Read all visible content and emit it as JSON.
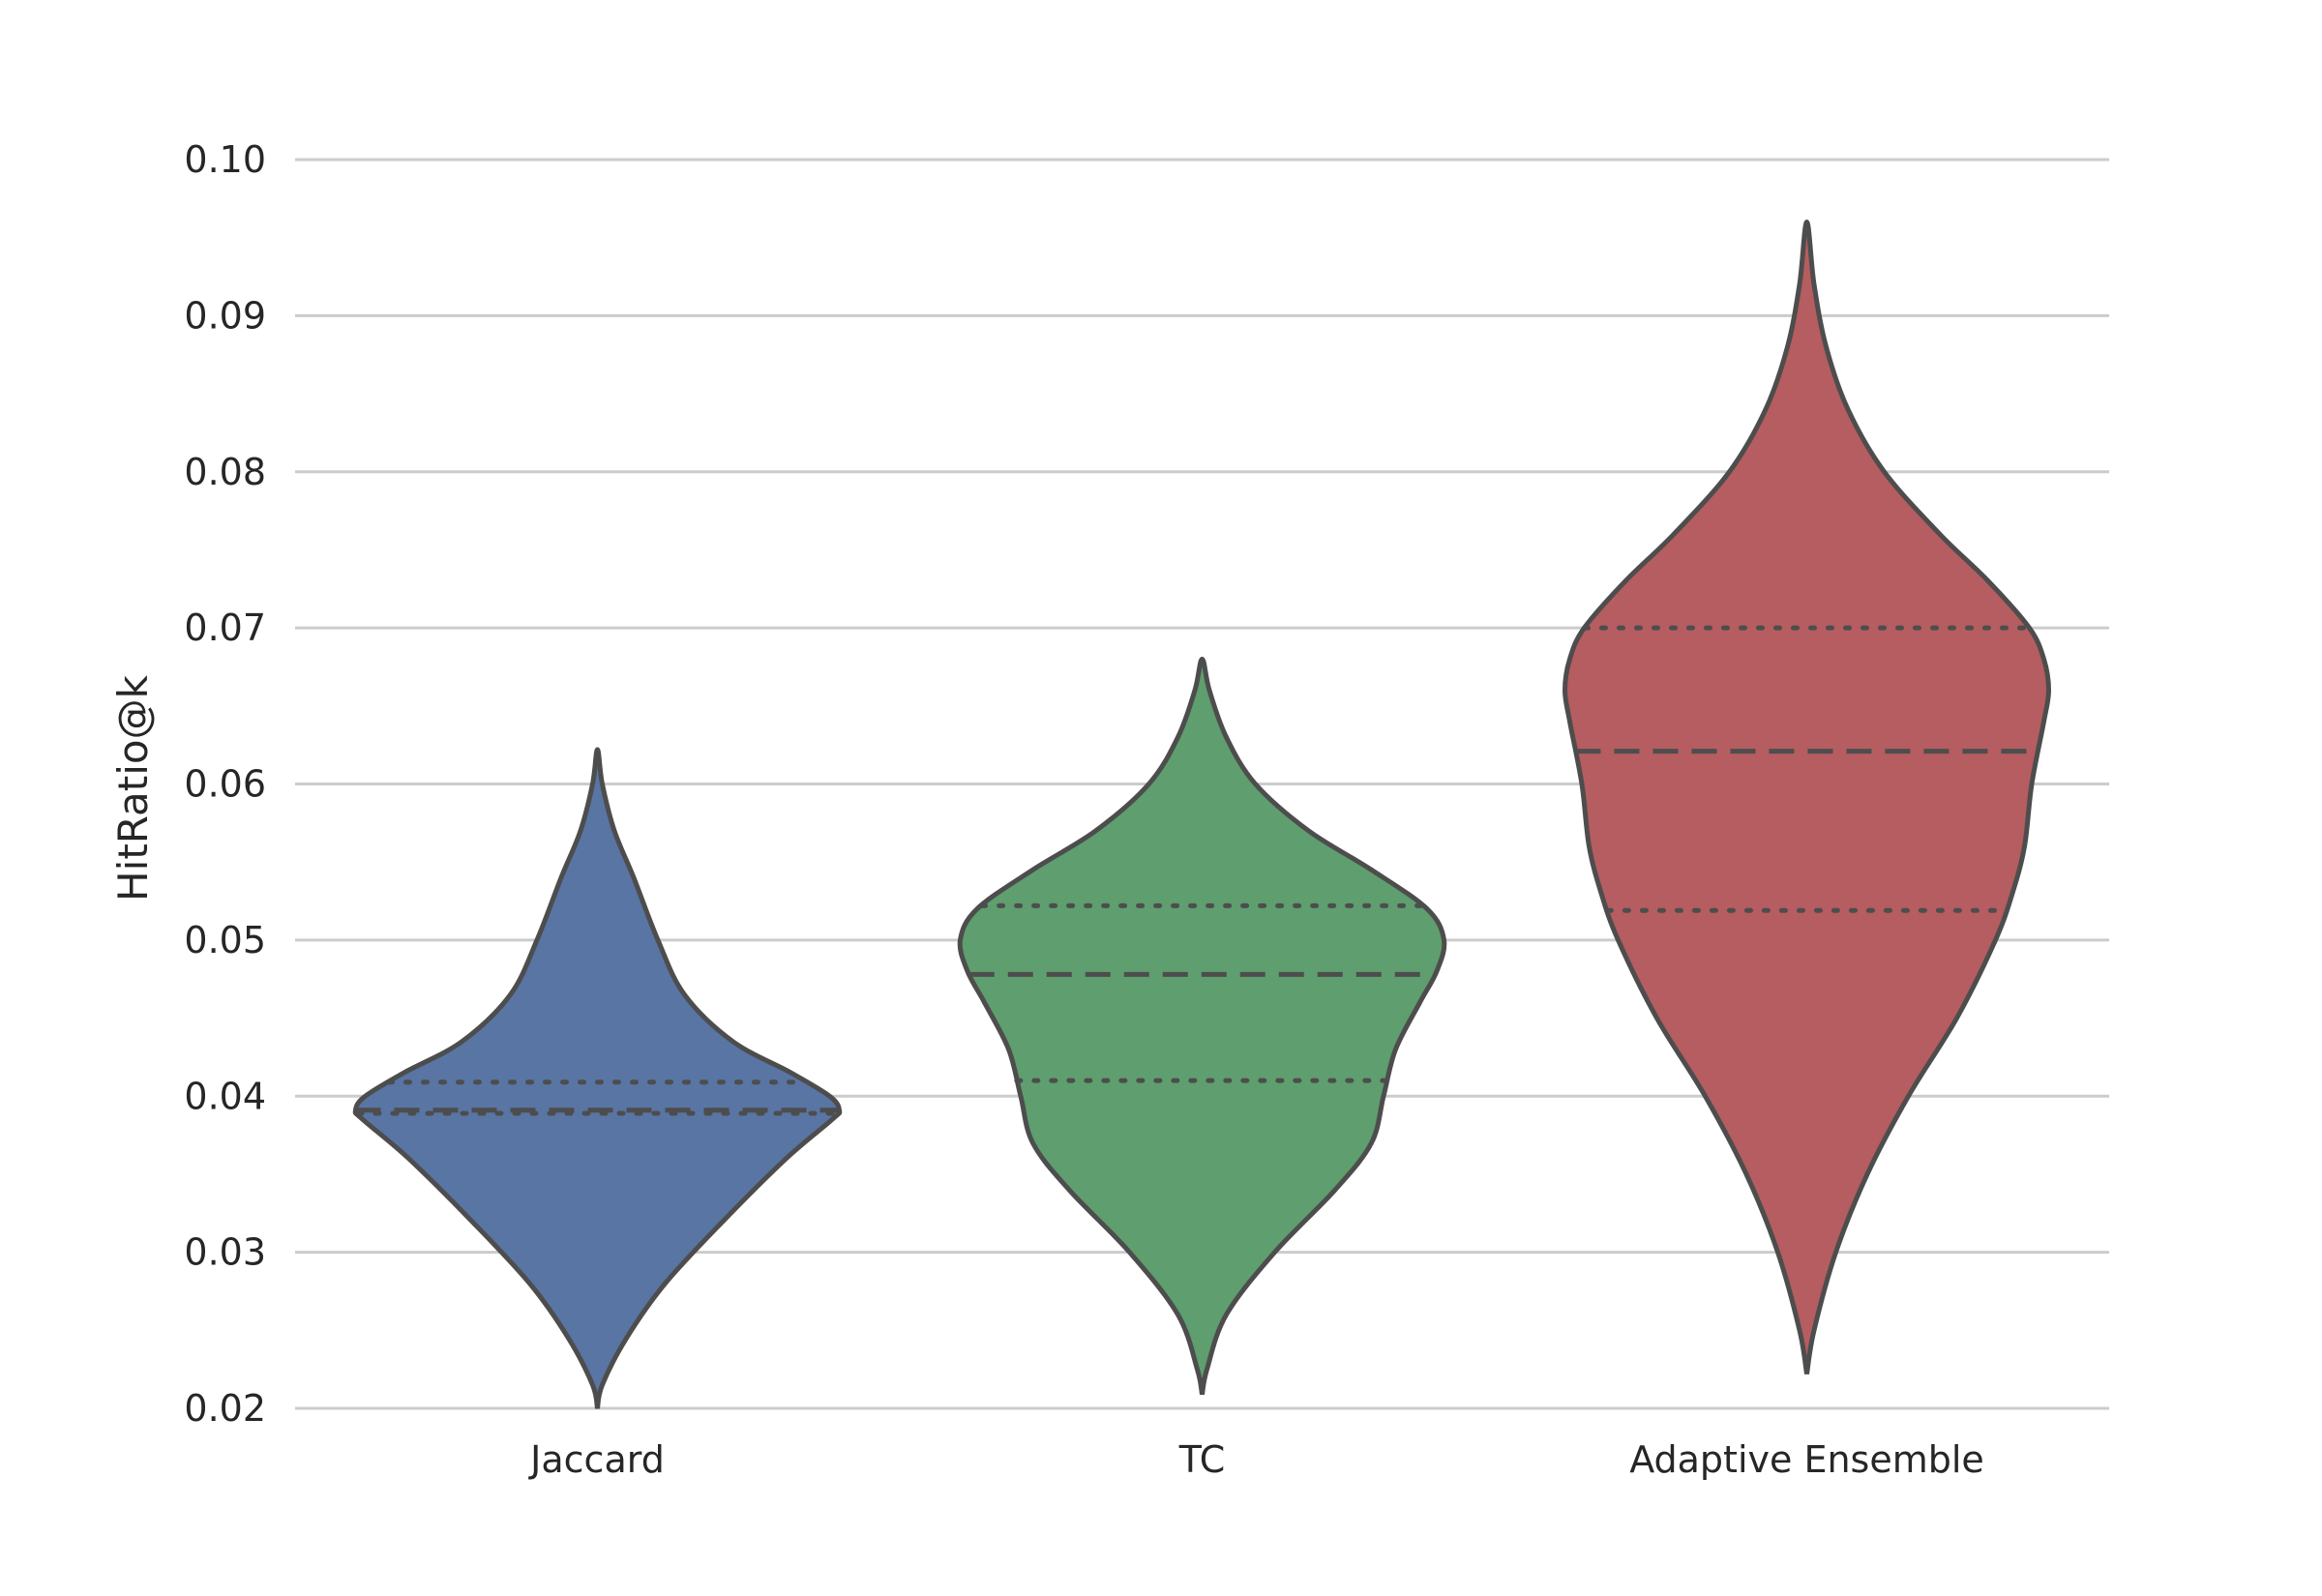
{
  "chart_data": {
    "type": "violin",
    "title": "",
    "xlabel": "",
    "ylabel": "HitRatio@k",
    "ylim": [
      0.02,
      0.1
    ],
    "yticks": [
      "0.02",
      "0.03",
      "0.04",
      "0.05",
      "0.06",
      "0.07",
      "0.08",
      "0.09",
      "0.10"
    ],
    "grid": "horizontal",
    "categories": [
      "Jaccard",
      "TC",
      "Adaptive Ensemble"
    ],
    "series": [
      {
        "category": "Jaccard",
        "color": "#5975a4",
        "min": 0.02,
        "max": 0.0622,
        "q1": 0.0389,
        "median": 0.0391,
        "q3": 0.0409,
        "density_profile": [
          [
            0.02,
            0.0
          ],
          [
            0.0215,
            0.02
          ],
          [
            0.0245,
            0.12
          ],
          [
            0.028,
            0.28
          ],
          [
            0.032,
            0.52
          ],
          [
            0.036,
            0.78
          ],
          [
            0.0385,
            0.97
          ],
          [
            0.0391,
            1.0
          ],
          [
            0.04,
            0.96
          ],
          [
            0.0415,
            0.8
          ],
          [
            0.0435,
            0.56
          ],
          [
            0.0465,
            0.36
          ],
          [
            0.05,
            0.25
          ],
          [
            0.054,
            0.15
          ],
          [
            0.057,
            0.07
          ],
          [
            0.06,
            0.02
          ],
          [
            0.0622,
            0.0
          ]
        ]
      },
      {
        "category": "TC",
        "color": "#5f9e6e",
        "min": 0.0209,
        "max": 0.068,
        "q1": 0.041,
        "median": 0.0478,
        "q3": 0.0522,
        "density_profile": [
          [
            0.0209,
            0.0
          ],
          [
            0.0225,
            0.02
          ],
          [
            0.026,
            0.1
          ],
          [
            0.03,
            0.3
          ],
          [
            0.034,
            0.55
          ],
          [
            0.037,
            0.7
          ],
          [
            0.04,
            0.75
          ],
          [
            0.043,
            0.8
          ],
          [
            0.046,
            0.9
          ],
          [
            0.048,
            0.97
          ],
          [
            0.05,
            1.0
          ],
          [
            0.052,
            0.93
          ],
          [
            0.0545,
            0.7
          ],
          [
            0.057,
            0.44
          ],
          [
            0.06,
            0.22
          ],
          [
            0.063,
            0.1
          ],
          [
            0.066,
            0.03
          ],
          [
            0.068,
            0.0
          ]
        ]
      },
      {
        "category": "Adaptive Ensemble",
        "color": "#b55d60",
        "min": 0.0222,
        "max": 0.096,
        "q1": 0.0519,
        "median": 0.0621,
        "q3": 0.07,
        "density_profile": [
          [
            0.0222,
            0.0
          ],
          [
            0.025,
            0.03
          ],
          [
            0.03,
            0.12
          ],
          [
            0.035,
            0.25
          ],
          [
            0.04,
            0.42
          ],
          [
            0.045,
            0.62
          ],
          [
            0.05,
            0.78
          ],
          [
            0.053,
            0.85
          ],
          [
            0.056,
            0.9
          ],
          [
            0.06,
            0.93
          ],
          [
            0.064,
            0.98
          ],
          [
            0.066,
            1.0
          ],
          [
            0.068,
            0.98
          ],
          [
            0.07,
            0.92
          ],
          [
            0.073,
            0.75
          ],
          [
            0.076,
            0.55
          ],
          [
            0.08,
            0.32
          ],
          [
            0.084,
            0.17
          ],
          [
            0.088,
            0.08
          ],
          [
            0.092,
            0.03
          ],
          [
            0.096,
            0.0
          ]
        ]
      }
    ]
  }
}
